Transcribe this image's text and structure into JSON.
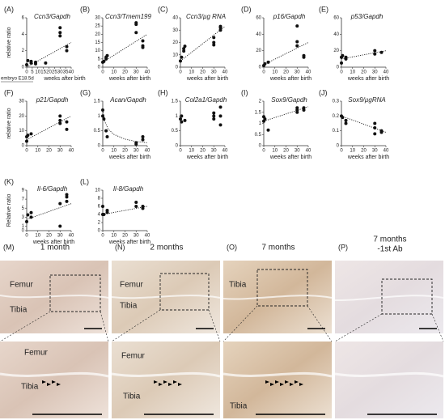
{
  "chart_data": [
    {
      "type": "scatter",
      "label": "(A)",
      "title": "Ccn3/Gapdh",
      "ylabel": "relative ratio",
      "xlabel": "weeks after birth",
      "note": "embryo E18.5d",
      "xlim": [
        0,
        40
      ],
      "xticks": [
        0,
        5,
        10,
        15,
        20,
        25,
        30,
        35,
        40
      ],
      "ylim": [
        0,
        6
      ],
      "yticks": [
        0,
        2,
        4,
        6
      ],
      "x": [
        0,
        1,
        4,
        4,
        8,
        8,
        17,
        30,
        30,
        30,
        36,
        36
      ],
      "values": [
        0.3,
        0.8,
        0.7,
        0.5,
        0.6,
        0.4,
        0.5,
        4.8,
        4.2,
        3.8,
        2.5,
        2.0
      ],
      "trend": {
        "x": [
          0,
          40
        ],
        "values": [
          0,
          3
        ]
      }
    },
    {
      "type": "scatter",
      "label": "(B)",
      "title": "Ccn3/Tmem199",
      "xlabel": "weeks after birth",
      "xlim": [
        0,
        40
      ],
      "xticks": [
        0,
        10,
        20,
        30,
        40
      ],
      "ylim": [
        0,
        30
      ],
      "yticks": [
        0,
        5,
        10,
        15,
        20,
        25,
        30
      ],
      "x": [
        0,
        1,
        3,
        3,
        4,
        30,
        30,
        30,
        36,
        36,
        36
      ],
      "values": [
        3,
        3.5,
        5,
        6,
        7,
        27,
        26,
        21,
        16,
        13,
        12
      ],
      "trend": {
        "x": [
          0,
          40
        ],
        "values": [
          3,
          20
        ]
      }
    },
    {
      "type": "scatter",
      "label": "(C)",
      "title": "Ccn3/µg RNA",
      "xlabel": "weeks after birth",
      "xlim": [
        0,
        40
      ],
      "xticks": [
        0,
        10,
        20,
        30,
        40
      ],
      "ylim": [
        0,
        40
      ],
      "yticks": [
        0,
        10,
        20,
        30,
        40
      ],
      "x": [
        0,
        1,
        3,
        3,
        4,
        30,
        30,
        30,
        36,
        36,
        36
      ],
      "values": [
        5,
        8,
        13,
        15,
        17,
        24,
        20,
        18,
        33,
        32,
        30
      ],
      "trend": {
        "x": [
          0,
          40
        ],
        "values": [
          5,
          33
        ]
      }
    },
    {
      "type": "scatter",
      "label": "(D)",
      "title": "p16/Gapdh",
      "xlabel": "weeks after birth",
      "xlim": [
        0,
        40
      ],
      "xticks": [
        0,
        10,
        20,
        30,
        40
      ],
      "ylim": [
        0,
        60
      ],
      "yticks": [
        0,
        20,
        40,
        60
      ],
      "x": [
        0,
        1,
        4,
        30,
        30,
        30,
        36,
        36
      ],
      "values": [
        2,
        4,
        6,
        50,
        31,
        26,
        14,
        12
      ],
      "trend": {
        "x": [
          0,
          40
        ],
        "values": [
          3,
          30
        ]
      }
    },
    {
      "type": "scatter",
      "label": "(E)",
      "title": "p53/Gapdh",
      "xlabel": "weeks after birth",
      "xlim": [
        0,
        40
      ],
      "xticks": [
        0,
        10,
        20,
        30,
        40
      ],
      "ylim": [
        0,
        60
      ],
      "yticks": [
        0,
        20,
        40,
        60
      ],
      "x": [
        0,
        0,
        1,
        4,
        4,
        30,
        30,
        36
      ],
      "values": [
        12,
        5,
        14,
        10,
        12,
        20,
        16,
        18
      ],
      "trend": {
        "x": [
          0,
          40
        ],
        "values": [
          10,
          20
        ]
      }
    },
    {
      "type": "scatter",
      "label": "(F)",
      "title": "p21/Gapdh",
      "ylabel": "relative ratio",
      "xlim": [
        0,
        40
      ],
      "xticks": [
        0,
        10,
        20,
        30,
        40
      ],
      "ylim": [
        0,
        30
      ],
      "yticks": [
        0,
        10,
        20,
        30
      ],
      "x": [
        0,
        0,
        1,
        4,
        30,
        30,
        30,
        36,
        36
      ],
      "values": [
        3,
        6,
        7,
        8,
        20,
        17,
        15,
        16,
        11
      ],
      "trend": {
        "x": [
          0,
          40
        ],
        "values": [
          4,
          20
        ]
      }
    },
    {
      "type": "scatter",
      "label": "(G)",
      "title": "Acan/Gapdh",
      "xlabel": "weeks after birth",
      "xlim": [
        0,
        40
      ],
      "xticks": [
        0,
        10,
        20,
        30,
        40
      ],
      "ylim": [
        0,
        1.5
      ],
      "yticks": [
        0,
        0.5,
        1,
        1.5
      ],
      "x": [
        0,
        0,
        1,
        3,
        4,
        30,
        30,
        36,
        36
      ],
      "values": [
        1.2,
        1.0,
        0.9,
        0.5,
        0.3,
        0.1,
        0.05,
        0.2,
        0.3
      ],
      "trend": {
        "x": [
          0,
          2,
          5,
          10,
          20,
          30,
          40
        ],
        "values": [
          1.2,
          0.8,
          0.55,
          0.38,
          0.22,
          0.14,
          0.1
        ]
      }
    },
    {
      "type": "scatter",
      "label": "(H)",
      "title": "Col2a1/Gapdh",
      "xlabel": "weeks after birth",
      "xlim": [
        0,
        40
      ],
      "xticks": [
        0,
        10,
        20,
        30,
        40
      ],
      "ylim": [
        0,
        1.5
      ],
      "yticks": [
        0,
        0.5,
        1,
        1.5
      ],
      "x": [
        0,
        1,
        1,
        4,
        30,
        30,
        30,
        36,
        36,
        36
      ],
      "values": [
        0.9,
        1.0,
        0.8,
        0.85,
        1.1,
        1.0,
        0.9,
        1.3,
        1.0,
        0.7
      ]
    },
    {
      "type": "scatter",
      "label": "(I)",
      "title": "Sox9/Gapdh",
      "xlabel": "weeks after birth",
      "xlim": [
        0,
        40
      ],
      "xticks": [
        0,
        10,
        20,
        30,
        40
      ],
      "ylim": [
        0,
        2
      ],
      "yticks": [
        0,
        0.5,
        1,
        1.5,
        2
      ],
      "x": [
        0,
        0,
        1,
        4,
        30,
        30,
        30,
        36,
        36
      ],
      "values": [
        1.3,
        1.1,
        1.2,
        0.7,
        1.7,
        1.6,
        1.5,
        1.7,
        1.6
      ],
      "trend": {
        "x": [
          0,
          40
        ],
        "values": [
          1.1,
          1.75
        ]
      }
    },
    {
      "type": "scatter",
      "label": "(J)",
      "title": "Sox9/µgRNA",
      "xlabel": "weeks after birth",
      "xlim": [
        0,
        40
      ],
      "xticks": [
        0,
        10,
        20,
        30,
        40
      ],
      "ylim": [
        0,
        0.3
      ],
      "yticks": [
        0,
        0.1,
        0.2,
        0.3
      ],
      "x": [
        0,
        1,
        4,
        4,
        30,
        30,
        30,
        36,
        36
      ],
      "values": [
        0.2,
        0.19,
        0.17,
        0.15,
        0.15,
        0.12,
        0.08,
        0.1,
        0.09
      ],
      "trend": {
        "x": [
          0,
          40
        ],
        "values": [
          0.2,
          0.09
        ]
      }
    },
    {
      "type": "scatter",
      "label": "(K)",
      "title": "Il-6/Gapdh",
      "ylabel": "Relative ratio",
      "xlabel": "weeks after birth",
      "xlim": [
        0,
        40
      ],
      "xticks": [
        0,
        10,
        20,
        30,
        40
      ],
      "ylim": [
        0,
        9
      ],
      "yticks": [
        0,
        1,
        3,
        5,
        7,
        9
      ],
      "x": [
        0,
        1,
        4,
        4,
        30,
        30,
        36,
        36,
        36
      ],
      "values": [
        2,
        3.5,
        3,
        4,
        6,
        1,
        6.5,
        7.5,
        8
      ],
      "trend": {
        "x": [
          0,
          40
        ],
        "values": [
          2.5,
          6
        ]
      }
    },
    {
      "type": "scatter",
      "label": "(L)",
      "title": "Il-8/Gapdh",
      "xlabel": "weeks after birth",
      "xlim": [
        0,
        40
      ],
      "xticks": [
        0,
        10,
        20,
        30,
        40
      ],
      "ylim": [
        0,
        10
      ],
      "yticks": [
        0,
        2,
        4,
        6,
        8,
        10
      ],
      "x": [
        0,
        0,
        1,
        4,
        4,
        30,
        30,
        36,
        36
      ],
      "values": [
        4,
        6,
        4,
        4.5,
        5,
        7,
        6,
        6,
        5.5
      ],
      "trend": {
        "x": [
          0,
          40
        ],
        "values": [
          4,
          6
        ]
      }
    }
  ],
  "micrographs": [
    {
      "label": "(M)",
      "title": [
        "1 month"
      ],
      "top_labels": [
        "Femur",
        "Tibia"
      ],
      "zoom_labels": [
        "Femur",
        "Tibia"
      ]
    },
    {
      "label": "(N)",
      "title": [
        "2 months"
      ],
      "top_labels": [
        "Femur",
        "Tibia"
      ],
      "zoom_labels": [
        "Femur",
        "Tibia"
      ]
    },
    {
      "label": "(O)",
      "title": [
        "7 months"
      ],
      "top_labels": [
        "Tibia"
      ],
      "zoom_labels": [
        "Tibia"
      ]
    },
    {
      "label": "(P)",
      "title": [
        "7 months",
        "-1st Ab"
      ],
      "top_labels": [],
      "zoom_labels": []
    }
  ]
}
